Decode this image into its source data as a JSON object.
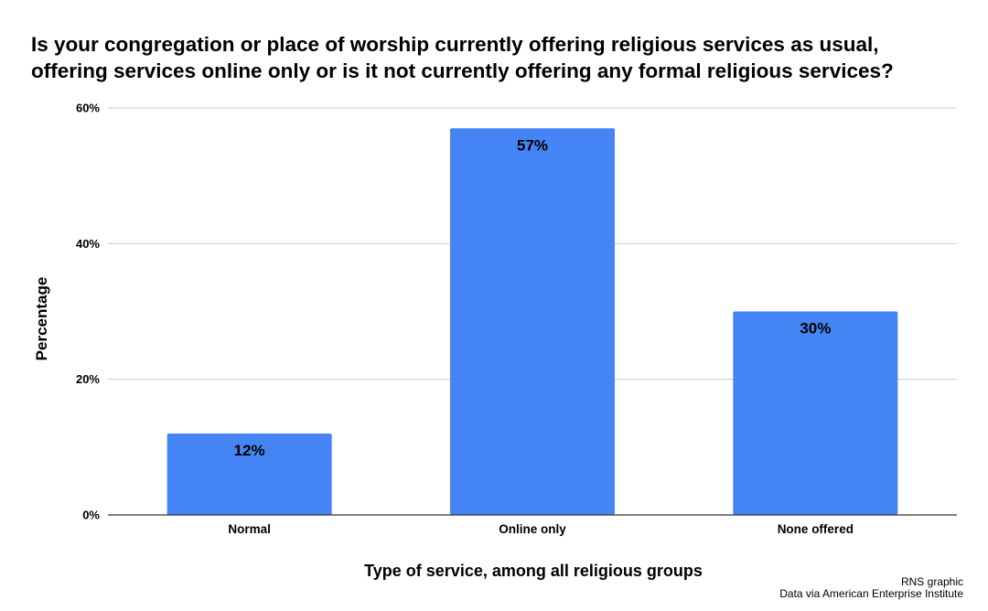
{
  "title_lines": [
    "Is your congregation or place of worship currently offering religious services as usual,",
    "offering services online only or is it not currently offering any formal religious services?"
  ],
  "credits": {
    "line1": "RNS graphic",
    "line2": "Data via American Enterprise Institute"
  },
  "colors": {
    "bar": "#4584f4",
    "grid": "#cccccc",
    "axis": "#333333"
  },
  "chart_data": {
    "type": "bar",
    "title": "Is your congregation or place of worship currently offering religious services as usual, offering services online only or is it not currently offering any formal religious services?",
    "xlabel": "Type of service, among all religious groups",
    "ylabel": "Percentage",
    "categories": [
      "Normal",
      "Online only",
      "None offered"
    ],
    "values": [
      12,
      57,
      30
    ],
    "data_labels": [
      "12%",
      "57%",
      "30%"
    ],
    "ylim": [
      0,
      60
    ],
    "yticks": [
      0,
      20,
      40,
      60
    ],
    "ytick_labels": [
      "0%",
      "20%",
      "40%",
      "60%"
    ],
    "grid": true,
    "legend": "none"
  }
}
